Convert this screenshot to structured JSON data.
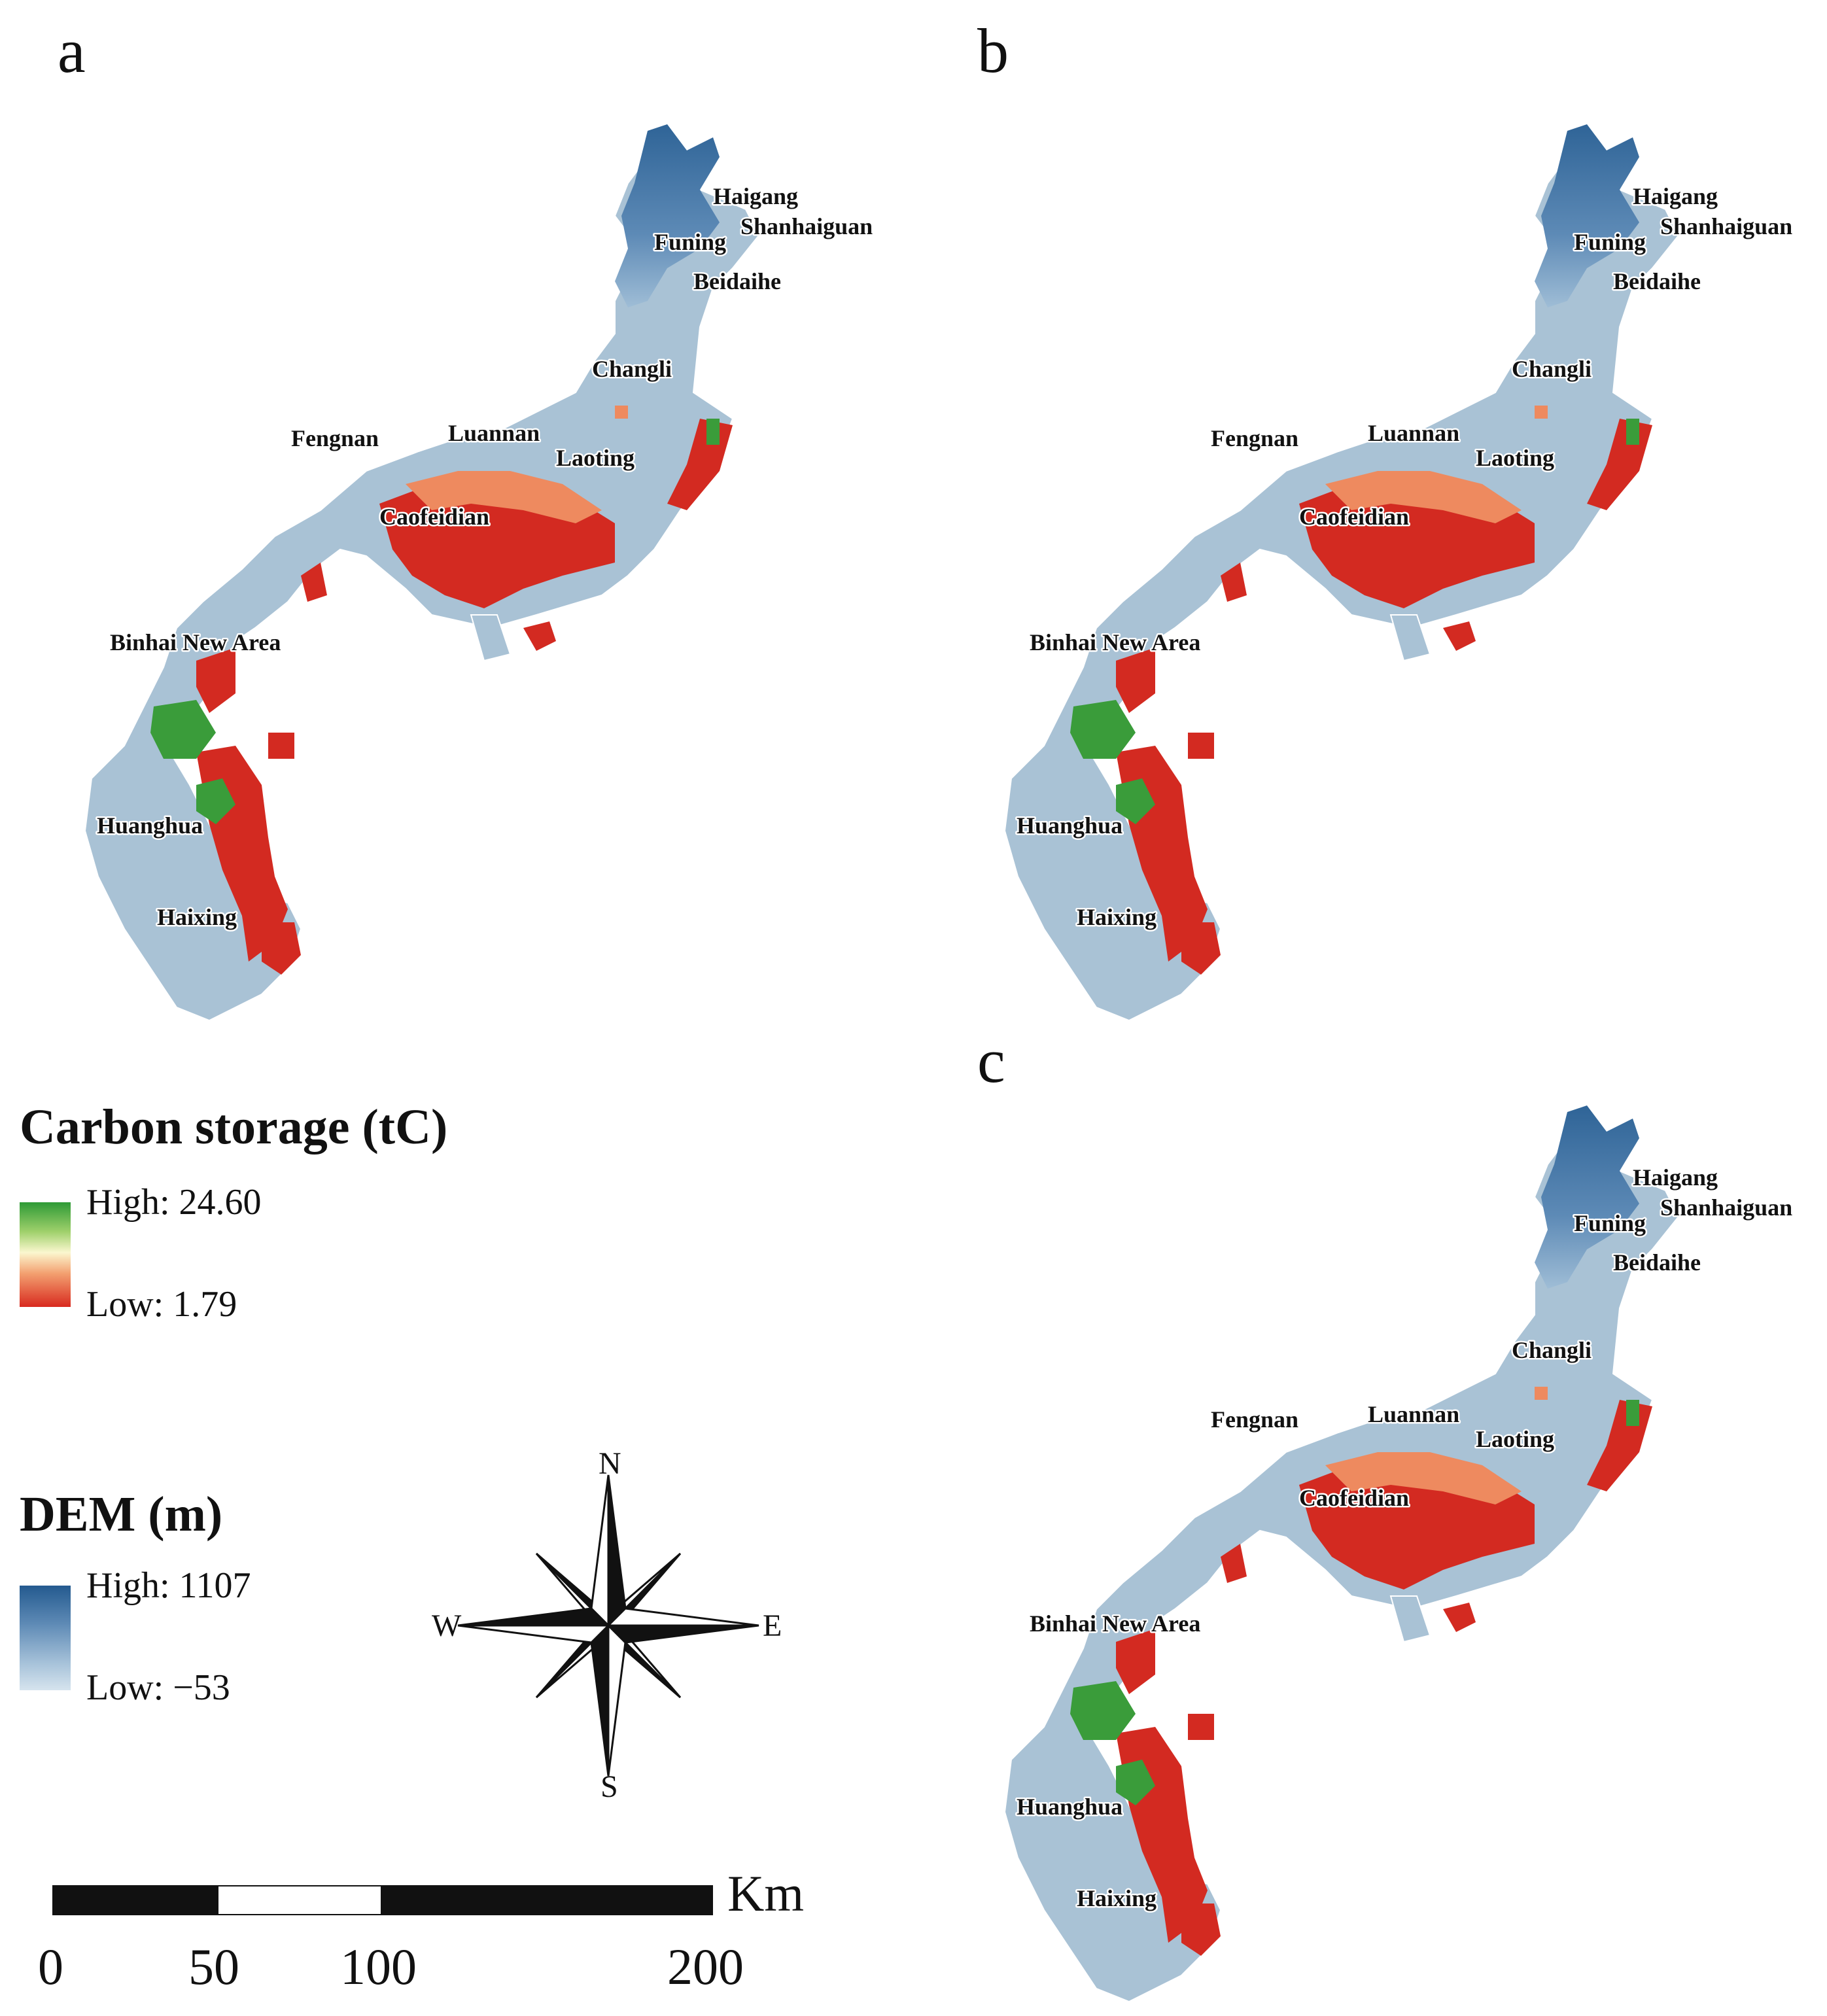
{
  "panels": [
    {
      "letter": "a"
    },
    {
      "letter": "b"
    },
    {
      "letter": "c"
    }
  ],
  "place_names": {
    "haigang": "Haigang",
    "shanhaiguan": "Shanhaiguan",
    "funing": "Funing",
    "beidaihe": "Beidaihe",
    "changli": "Changli",
    "fengnan": "Fengnan",
    "luannan": "Luannan",
    "laoting": "Laoting",
    "caofeidian": "Caofeidian",
    "binhai": "Binhai New Area",
    "huanghua": "Huanghua",
    "haixing": "Haixing"
  },
  "legend": {
    "carbon": {
      "title": "Carbon storage (tC)",
      "high": "High: 24.60",
      "low": "Low: 1.79",
      "colors": [
        "#2e9a36",
        "#fbf7cf",
        "#d82a1f"
      ]
    },
    "dem": {
      "title": "DEM (m)",
      "high": "High: 1107",
      "low": "Low: −53",
      "colors": [
        "#245a8f",
        "#d6e4ee"
      ]
    }
  },
  "compass": {
    "n": "N",
    "s": "S",
    "e": "E",
    "w": "W"
  },
  "scale_bar": {
    "unit": "Km",
    "ticks": [
      "0",
      "50",
      "100",
      "200"
    ]
  }
}
